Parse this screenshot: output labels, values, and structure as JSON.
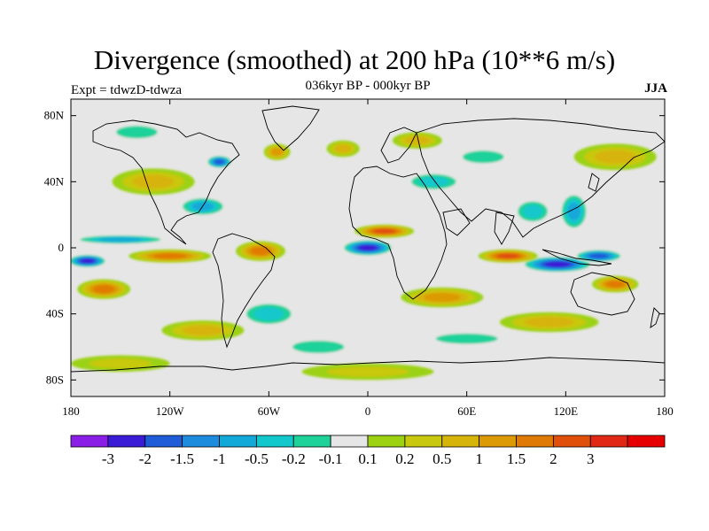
{
  "title": "Divergence (smoothed) at 200 hPa (10**6 m/s)",
  "subtitle": "036kyr BP - 000kyr BP",
  "expt_label": "Expt = tdwzD-tdwza",
  "season": "JJA",
  "map": {
    "lon_range": [
      -180,
      180
    ],
    "lat_range": [
      -90,
      90
    ],
    "lon_ticks": [
      {
        "value": -180,
        "label": "180"
      },
      {
        "value": -120,
        "label": "120W"
      },
      {
        "value": -60,
        "label": "60W"
      },
      {
        "value": 0,
        "label": "0"
      },
      {
        "value": 60,
        "label": "60E"
      },
      {
        "value": 120,
        "label": "120E"
      },
      {
        "value": 180,
        "label": "180"
      }
    ],
    "lat_ticks": [
      {
        "value": 80,
        "label": "80N"
      },
      {
        "value": 40,
        "label": "40N"
      },
      {
        "value": 0,
        "label": "0"
      },
      {
        "value": -40,
        "label": "40S"
      },
      {
        "value": -80,
        "label": "80S"
      }
    ],
    "background_color": "#e6e6e6",
    "features": [
      {
        "lon": 0,
        "lat": 0,
        "rx": 16,
        "ry": 5,
        "level": -3
      },
      {
        "lon": -170,
        "lat": -8,
        "rx": 12,
        "ry": 4,
        "level": -3
      },
      {
        "lon": 115,
        "lat": -10,
        "rx": 22,
        "ry": 5,
        "level": -3
      },
      {
        "lon": 140,
        "lat": -5,
        "rx": 15,
        "ry": 4,
        "level": -2
      },
      {
        "lon": -90,
        "lat": 52,
        "rx": 8,
        "ry": 4,
        "level": -2
      },
      {
        "lon": -150,
        "lat": 5,
        "rx": 30,
        "ry": 3,
        "level": -1
      },
      {
        "lon": -100,
        "lat": 25,
        "rx": 15,
        "ry": 6,
        "level": -1
      },
      {
        "lon": 125,
        "lat": 22,
        "rx": 9,
        "ry": 12,
        "level": -1
      },
      {
        "lon": 100,
        "lat": 22,
        "rx": 12,
        "ry": 8,
        "level": -0.5
      },
      {
        "lon": -60,
        "lat": -40,
        "rx": 18,
        "ry": 8,
        "level": -0.5
      },
      {
        "lon": 40,
        "lat": 40,
        "rx": 18,
        "ry": 6,
        "level": -0.5
      },
      {
        "lon": 70,
        "lat": 55,
        "rx": 20,
        "ry": 6,
        "level": -0.2
      },
      {
        "lon": -30,
        "lat": -60,
        "rx": 25,
        "ry": 6,
        "level": -0.2
      },
      {
        "lon": -140,
        "lat": 70,
        "rx": 20,
        "ry": 6,
        "level": -0.2
      },
      {
        "lon": 60,
        "lat": -55,
        "rx": 30,
        "ry": 5,
        "level": -0.2
      },
      {
        "lon": 10,
        "lat": 10,
        "rx": 18,
        "ry": 4,
        "level": 2
      },
      {
        "lon": 85,
        "lat": -5,
        "rx": 18,
        "ry": 4,
        "level": 2
      },
      {
        "lon": -120,
        "lat": -5,
        "rx": 25,
        "ry": 4,
        "level": 1.5
      },
      {
        "lon": 150,
        "lat": -22,
        "rx": 14,
        "ry": 5,
        "level": 1.5
      },
      {
        "lon": -160,
        "lat": -25,
        "rx": 16,
        "ry": 6,
        "level": 1.5
      },
      {
        "lon": -65,
        "lat": -2,
        "rx": 15,
        "ry": 6,
        "level": 1.5
      },
      {
        "lon": -55,
        "lat": 58,
        "rx": 8,
        "ry": 5,
        "level": 1
      },
      {
        "lon": 45,
        "lat": -30,
        "rx": 25,
        "ry": 6,
        "level": 1
      },
      {
        "lon": -15,
        "lat": 60,
        "rx": 10,
        "ry": 5,
        "level": 0.5
      },
      {
        "lon": 30,
        "lat": 65,
        "rx": 15,
        "ry": 5,
        "level": 0.5
      },
      {
        "lon": 150,
        "lat": 55,
        "rx": 25,
        "ry": 8,
        "level": 0.5
      },
      {
        "lon": -130,
        "lat": 40,
        "rx": 25,
        "ry": 8,
        "level": 0.5
      },
      {
        "lon": 110,
        "lat": -45,
        "rx": 30,
        "ry": 6,
        "level": 0.5
      },
      {
        "lon": -100,
        "lat": -50,
        "rx": 25,
        "ry": 6,
        "level": 0.5
      },
      {
        "lon": -150,
        "lat": -70,
        "rx": 30,
        "ry": 5,
        "level": 0.2
      },
      {
        "lon": 0,
        "lat": -75,
        "rx": 40,
        "ry": 5,
        "level": 0.2
      }
    ]
  },
  "colorbar": {
    "colors": [
      "#8b1ee6",
      "#3a1cd6",
      "#1e5cd8",
      "#1e8cdc",
      "#12a8d8",
      "#12c8cc",
      "#1ed29a",
      "#e6e6e6",
      "#9cd212",
      "#c8c80e",
      "#d6b40a",
      "#dc9a06",
      "#e07a06",
      "#e0500a",
      "#e02814",
      "#e60000"
    ],
    "labels": [
      "-3",
      "-2",
      "-1.5",
      "-1",
      "-0.5",
      "-0.2",
      "-0.1",
      "0.1",
      "0.2",
      "0.5",
      "1",
      "1.5",
      "2",
      "3"
    ],
    "levels": [
      -3,
      -2,
      -1.5,
      -1,
      -0.5,
      -0.2,
      -0.1,
      0.1,
      0.2,
      0.5,
      1,
      1.5,
      2,
      3
    ]
  }
}
